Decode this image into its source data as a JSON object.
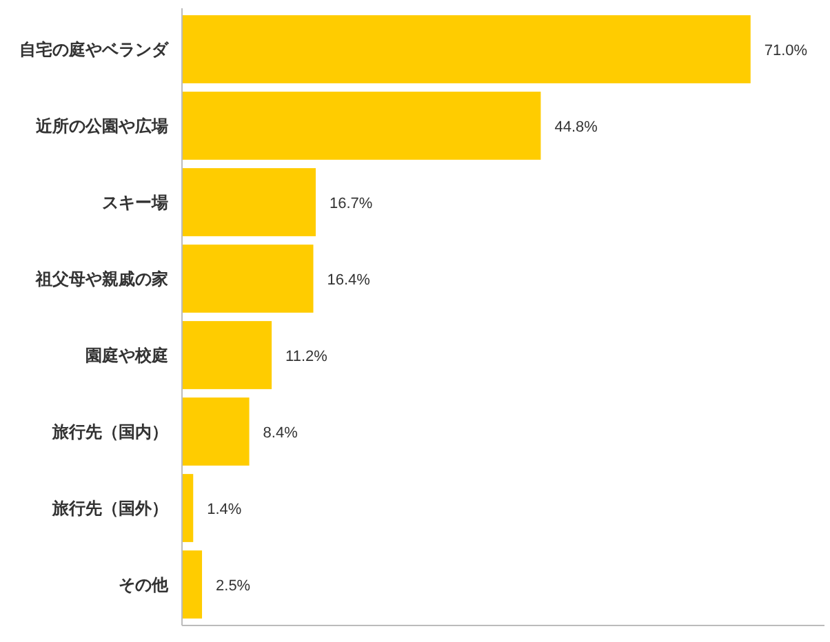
{
  "chart_data": {
    "type": "bar",
    "orientation": "horizontal",
    "color": "#ffcc00",
    "categories": [
      "自宅の庭やベランダ",
      "近所の公園や広場",
      "スキー場",
      "祖父母や親戚の家",
      "園庭や校庭",
      "旅行先（国内）",
      "旅行先（国外）",
      "その他"
    ],
    "values": [
      71.0,
      44.8,
      16.7,
      16.4,
      11.2,
      8.4,
      1.4,
      2.5
    ],
    "value_labels": [
      "71.0%",
      "44.8%",
      "16.7%",
      "16.4%",
      "11.2%",
      "8.4%",
      "1.4%",
      "2.5%"
    ]
  }
}
